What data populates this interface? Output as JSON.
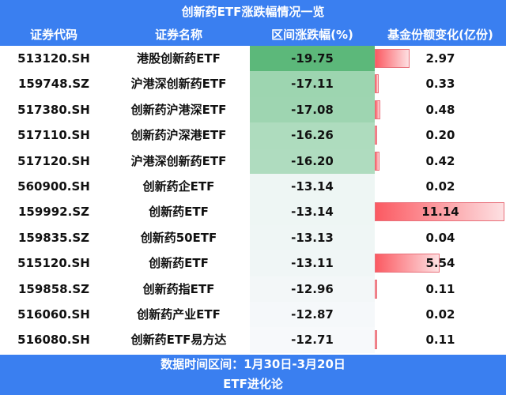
{
  "title": "创新药ETF涨跌幅情况一览",
  "columns": [
    "证券代码",
    "证券名称",
    "区间涨跌幅(%)",
    "基金份额变化(亿份)"
  ],
  "rows": [
    {
      "code": "513120.SH",
      "name": "港股创新药ETF",
      "change": "-19.75",
      "share_change": "2.97",
      "change_bg": "#5cb87a"
    },
    {
      "code": "159748.SZ",
      "name": "沪港深创新药ETF",
      "change": "-17.11",
      "share_change": "0.33",
      "change_bg": "#9dd5b0"
    },
    {
      "code": "517380.SH",
      "name": "创新药沪港深ETF",
      "change": "-17.08",
      "share_change": "0.48",
      "change_bg": "#9ed5b1"
    },
    {
      "code": "517110.SH",
      "name": "创新药沪深港ETF",
      "change": "-16.26",
      "share_change": "0.20",
      "change_bg": "#aedcbe"
    },
    {
      "code": "517120.SH",
      "name": "沪港深创新药ETF",
      "change": "-16.20",
      "share_change": "0.42",
      "change_bg": "#afdcbf"
    },
    {
      "code": "560900.SH",
      "name": "创新药企ETF",
      "change": "-13.14",
      "share_change": "0.02",
      "change_bg": "#eef6f4"
    },
    {
      "code": "159992.SZ",
      "name": "创新药ETF",
      "change": "-13.14",
      "share_change": "11.14",
      "change_bg": "#eef6f4"
    },
    {
      "code": "159835.SZ",
      "name": "创新药50ETF",
      "change": "-13.13",
      "share_change": "0.04",
      "change_bg": "#eff6f5"
    },
    {
      "code": "515120.SH",
      "name": "创新药ETF",
      "change": "-13.11",
      "share_change": "5.54",
      "change_bg": "#f0f6f6"
    },
    {
      "code": "159858.SZ",
      "name": "创新药指ETF",
      "change": "-12.96",
      "share_change": "0.11",
      "change_bg": "#f3f7f8"
    },
    {
      "code": "516060.SH",
      "name": "创新药产业ETF",
      "change": "-12.87",
      "share_change": "0.02",
      "change_bg": "#f5f8fa"
    },
    {
      "code": "516080.SH",
      "name": "创新药ETF易方达",
      "change": "-12.71",
      "share_change": "0.11",
      "change_bg": "#f7f9fb"
    }
  ],
  "footer": {
    "date_range": "数据时间区间：1月30日-3月20日",
    "source": "ETF进化论"
  },
  "colors": {
    "header": "#3a7ff0",
    "bar": "#fb5a62",
    "green_max": "#5cb87a"
  },
  "chart_data": {
    "type": "table",
    "title": "创新药ETF涨跌幅情况一览",
    "columns": [
      "证券代码",
      "证券名称",
      "区间涨跌幅(%)",
      "基金份额变化(亿份)"
    ],
    "categories": [
      "513120.SH",
      "159748.SZ",
      "517380.SH",
      "517110.SH",
      "517120.SH",
      "560900.SH",
      "159992.SZ",
      "159835.SZ",
      "515120.SH",
      "159858.SZ",
      "516060.SH",
      "516080.SH"
    ],
    "series": [
      {
        "name": "区间涨跌幅(%)",
        "values": [
          -19.75,
          -17.11,
          -17.08,
          -16.26,
          -16.2,
          -13.14,
          -13.14,
          -13.13,
          -13.11,
          -12.96,
          -12.87,
          -12.71
        ]
      },
      {
        "name": "基金份额变化(亿份)",
        "values": [
          2.97,
          0.33,
          0.48,
          0.2,
          0.42,
          0.02,
          11.14,
          0.04,
          5.54,
          0.11,
          0.02,
          0.11
        ]
      }
    ],
    "annotations": [
      "数据时间区间：1月30日-3月20日",
      "ETF进化论"
    ]
  }
}
